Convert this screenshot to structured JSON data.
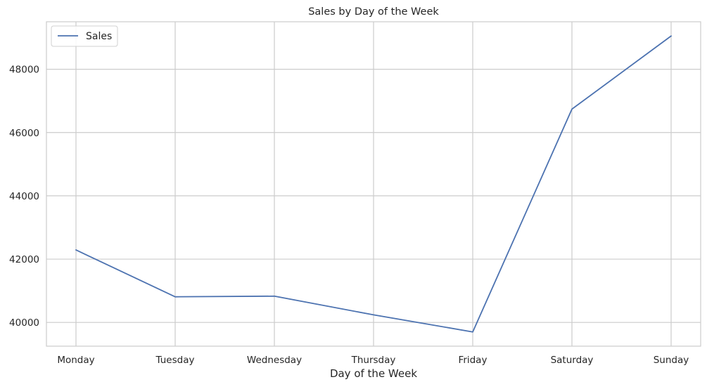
{
  "chart_data": {
    "type": "line",
    "title": "Sales by Day of the Week",
    "xlabel": "Day of the Week",
    "ylabel": "",
    "categories": [
      "Monday",
      "Tuesday",
      "Wednesday",
      "Thursday",
      "Friday",
      "Saturday",
      "Sunday"
    ],
    "series": [
      {
        "name": "Sales",
        "values": [
          42290,
          40810,
          40830,
          40240,
          39700,
          46740,
          49050
        ]
      }
    ],
    "ylim": [
      39250,
      49500
    ],
    "yticks": [
      40000,
      42000,
      44000,
      46000,
      48000
    ],
    "grid": true,
    "legend_position": "top-left",
    "colors": {
      "line": "#4c72b0",
      "grid": "#cccccc",
      "axes_edge": "#cccccc",
      "background": "#ffffff",
      "text": "#262626"
    }
  }
}
